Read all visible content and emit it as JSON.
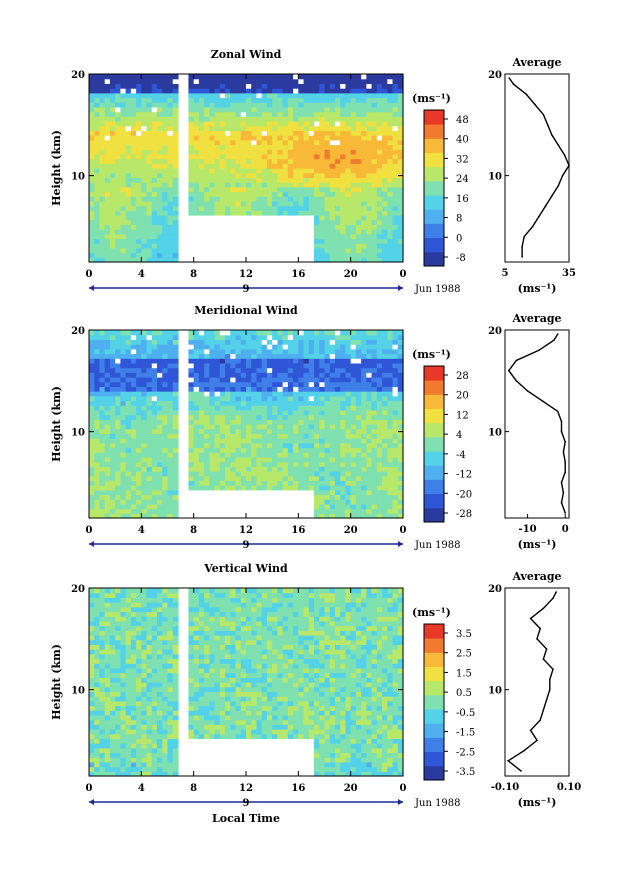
{
  "chart_data": [
    {
      "type": "heatmap",
      "title": "Zonal Wind",
      "xlabel": "",
      "ylabel": "Height (km)",
      "x_ticks": [
        "0",
        "4",
        "8",
        "12",
        "16",
        "20",
        "0"
      ],
      "y_ticks": [
        "10",
        "20"
      ],
      "xlim": [
        0,
        24
      ],
      "ylim": [
        1.5,
        20
      ],
      "date_marker": "9",
      "date_label": "Jun 1988",
      "colorbar": {
        "unit": "(ms⁻¹)",
        "ticks": [
          "48",
          "40",
          "32",
          "24",
          "16",
          "8",
          "0",
          "-8"
        ],
        "range": [
          -12,
          52
        ]
      },
      "data_gap": {
        "x_start": 6.9,
        "x_end": 7.7,
        "low_gap_x_end": 17,
        "low_gap_top": 6
      },
      "profile": {
        "title": "Average",
        "x_ticks": [
          "5",
          "35"
        ],
        "xlim": [
          5,
          35
        ],
        "xlabel": "(ms⁻¹)",
        "y_ticks": [
          "10",
          "20"
        ],
        "heights": [
          2,
          3,
          4,
          5,
          6,
          7,
          8,
          9,
          10,
          11,
          12,
          13,
          14,
          15,
          16,
          17,
          18,
          19,
          19.6
        ],
        "values": [
          13,
          13,
          14,
          18,
          21,
          24,
          27,
          30,
          32,
          35,
          33,
          30,
          27,
          25,
          23,
          19,
          15,
          9,
          7
        ]
      }
    },
    {
      "type": "heatmap",
      "title": "Meridional Wind",
      "xlabel": "",
      "ylabel": "Height (km)",
      "x_ticks": [
        "0",
        "4",
        "8",
        "12",
        "16",
        "20",
        "0"
      ],
      "y_ticks": [
        "10",
        "20"
      ],
      "xlim": [
        0,
        24
      ],
      "ylim": [
        1.5,
        20
      ],
      "date_marker": "9",
      "date_label": "Jun 1988",
      "colorbar": {
        "unit": "(ms⁻¹)",
        "ticks": [
          "28",
          "20",
          "12",
          "4",
          "-4",
          "-12",
          "-20",
          "-28"
        ],
        "range": [
          -32,
          32
        ]
      },
      "data_gap": {
        "x_start": 6.9,
        "x_end": 7.7,
        "low_gap_x_end": 17,
        "low_gap_top": 4.5
      },
      "profile": {
        "title": "Average",
        "x_ticks": [
          "-10",
          "0"
        ],
        "xlim": [
          -16,
          1
        ],
        "xlabel": "(ms⁻¹)",
        "y_ticks": [
          "10",
          "20"
        ],
        "heights": [
          2,
          3,
          4,
          5,
          6,
          7,
          8,
          9,
          10,
          11,
          12,
          13,
          14,
          15,
          16,
          17,
          18,
          19,
          19.6
        ],
        "values": [
          0,
          -1,
          -0.5,
          -1,
          0,
          0,
          -0.5,
          0,
          -1,
          -1,
          -2,
          -6,
          -10,
          -13,
          -15,
          -13,
          -7,
          -3,
          -2
        ]
      }
    },
    {
      "type": "heatmap",
      "title": "Vertical Wind",
      "xlabel": "Local Time",
      "ylabel": "Height (km)",
      "x_ticks": [
        "0",
        "4",
        "8",
        "12",
        "16",
        "20",
        "0"
      ],
      "y_ticks": [
        "10",
        "20"
      ],
      "xlim": [
        0,
        24
      ],
      "ylim": [
        1.5,
        20
      ],
      "date_marker": "9",
      "date_label": "Jun 1988",
      "colorbar": {
        "unit": "(ms⁻¹)",
        "ticks": [
          "3.5",
          "2.5",
          "1.5",
          "0.5",
          "-0.5",
          "-1.5",
          "-2.5",
          "-3.5"
        ],
        "range": [
          -4,
          4
        ]
      },
      "data_gap": {
        "x_start": 6.9,
        "x_end": 7.7,
        "low_gap_x_end": 17,
        "low_gap_top": 5
      },
      "profile": {
        "title": "Average",
        "x_ticks": [
          "-0.10",
          "0.10"
        ],
        "xlim": [
          -0.1,
          0.1
        ],
        "xlabel": "(ms⁻¹)",
        "y_ticks": [
          "10",
          "20"
        ],
        "heights": [
          2,
          3,
          4,
          5,
          6,
          7,
          8,
          9,
          10,
          11,
          12,
          13,
          14,
          15,
          16,
          17,
          18,
          19,
          19.6
        ],
        "values": [
          -0.05,
          -0.09,
          -0.04,
          0.0,
          -0.02,
          0.01,
          0.02,
          0.03,
          0.04,
          0.04,
          0.05,
          0.02,
          0.03,
          0.0,
          0.01,
          -0.02,
          0.02,
          0.05,
          0.06
        ]
      }
    }
  ],
  "colors": {
    "scale": [
      "#2a3a9e",
      "#2f56d6",
      "#3f7fe8",
      "#4fb0f0",
      "#53d2e8",
      "#7fe0b0",
      "#b8e86a",
      "#f0e040",
      "#f8b838",
      "#f07a30",
      "#e83828"
    ]
  }
}
